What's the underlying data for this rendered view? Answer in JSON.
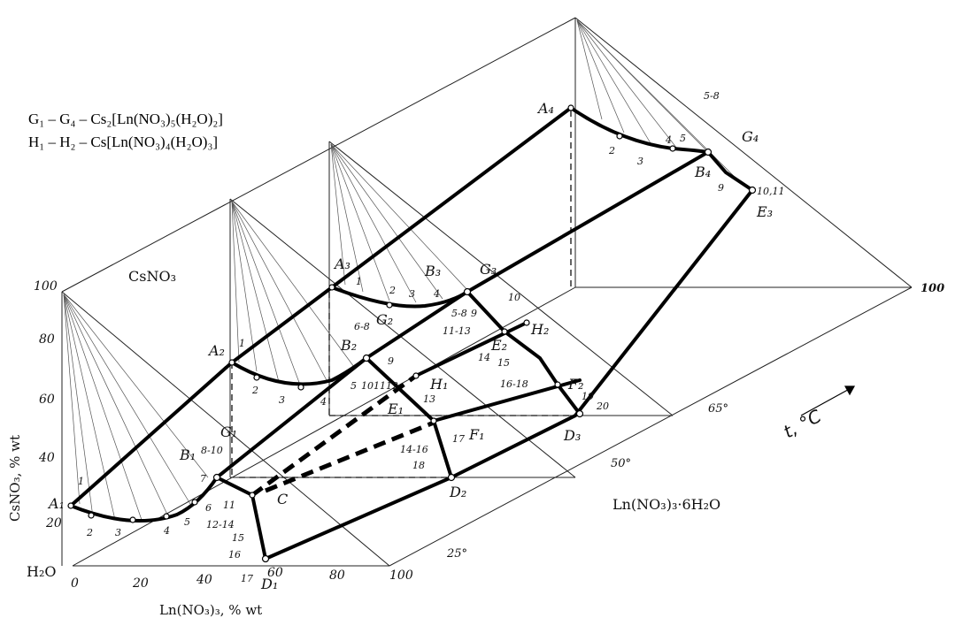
{
  "legend": {
    "line1": "G₁ – G₄ – Cs₂[Ln(NO₃)₅(H₂O)₂]",
    "line2": "H₁ – H₂ – Cs[Ln(NO₃)₄(H₂O)₃]"
  },
  "labels": {
    "csno3": "CsNO₃",
    "lnhydrate": "Ln(NO₃)₃·6H₂O",
    "h2o": "H₂O",
    "x_axis": "Ln(NO₃)₃, % wt",
    "y_axis": "CsNO₃, % wt",
    "t_axis": "t, °C"
  },
  "temperatures": [
    "25°",
    "50°",
    "65°",
    "100"
  ],
  "y_ticks": [
    "100",
    "80",
    "60",
    "40",
    "20"
  ],
  "x_ticks": [
    "0",
    "20",
    "40",
    "60",
    "80",
    "100"
  ],
  "points": {
    "A1": "A₁",
    "A2": "A₂",
    "A3": "A₃",
    "A4": "A₄",
    "B1": "B₁",
    "B2": "B₂",
    "B3": "B₃",
    "B4": "B₄",
    "C": "C",
    "D1": "D₁",
    "D2": "D₂",
    "D3": "D₃",
    "E1": "E₁",
    "E2": "E₂",
    "E3": "E₃",
    "F1": "F₁",
    "F2": "F₂",
    "G1": "G₁",
    "G2": "G₂",
    "G3": "G₃",
    "G4": "G₄",
    "H1": "H₁",
    "H2": "H₂"
  },
  "numbers": {
    "n25": [
      "1",
      "2",
      "3",
      "4",
      "5",
      "6",
      "7",
      "8-10",
      "11",
      "12-14",
      "15",
      "16",
      "17"
    ],
    "n50": [
      "1",
      "2",
      "3",
      "4",
      "5",
      "6-8",
      "9",
      "10",
      "11",
      "12",
      "13",
      "14-16",
      "17",
      "18"
    ],
    "n65": [
      "1",
      "2",
      "3",
      "4",
      "5-8",
      "9",
      "10",
      "11-13",
      "14",
      "15",
      "16-18",
      "19",
      "20"
    ],
    "n100": [
      "2",
      "3",
      "4",
      "5",
      "5-8",
      "9",
      "10,11"
    ]
  }
}
